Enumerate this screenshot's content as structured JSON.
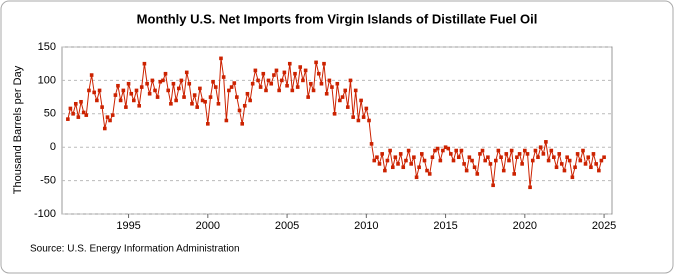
{
  "chart_data": {
    "type": "line",
    "title": "Monthly U.S. Net Imports from Virgin Islands of Distillate Fuel Oil",
    "y_label": "Thousand Barrels per Day",
    "source": "Source: U.S. Energy Information Administration",
    "xlim": [
      1990.8,
      2025.5
    ],
    "xticks": [
      1995,
      2000,
      2005,
      2010,
      2015,
      2020,
      2025
    ],
    "ylim": [
      -100,
      150
    ],
    "yticks": [
      -100,
      -50,
      0,
      50,
      100,
      150
    ],
    "grid": true,
    "x": [
      1991.17,
      1991.33,
      1991.5,
      1991.67,
      1991.83,
      1992.0,
      1992.17,
      1992.33,
      1992.5,
      1992.67,
      1992.83,
      1993.0,
      1993.17,
      1993.33,
      1993.5,
      1993.67,
      1993.83,
      1994.0,
      1994.17,
      1994.33,
      1994.5,
      1994.67,
      1994.83,
      1995.0,
      1995.17,
      1995.33,
      1995.5,
      1995.67,
      1995.83,
      1996.0,
      1996.17,
      1996.33,
      1996.5,
      1996.67,
      1996.83,
      1997.0,
      1997.17,
      1997.33,
      1997.5,
      1997.67,
      1997.83,
      1998.0,
      1998.17,
      1998.33,
      1998.5,
      1998.67,
      1998.83,
      1999.0,
      1999.17,
      1999.33,
      1999.5,
      1999.67,
      1999.83,
      2000.0,
      2000.17,
      2000.33,
      2000.5,
      2000.67,
      2000.83,
      2001.0,
      2001.17,
      2001.33,
      2001.5,
      2001.67,
      2001.83,
      2002.0,
      2002.17,
      2002.33,
      2002.5,
      2002.67,
      2002.83,
      2003.0,
      2003.17,
      2003.33,
      2003.5,
      2003.67,
      2003.83,
      2004.0,
      2004.17,
      2004.33,
      2004.5,
      2004.67,
      2004.83,
      2005.0,
      2005.17,
      2005.33,
      2005.5,
      2005.67,
      2005.83,
      2006.0,
      2006.17,
      2006.33,
      2006.5,
      2006.67,
      2006.83,
      2007.0,
      2007.17,
      2007.33,
      2007.5,
      2007.67,
      2007.83,
      2008.0,
      2008.17,
      2008.33,
      2008.5,
      2008.67,
      2008.83,
      2009.0,
      2009.17,
      2009.33,
      2009.5,
      2009.67,
      2009.83,
      2010.0,
      2010.17,
      2010.33,
      2010.5,
      2010.67,
      2010.83,
      2011.0,
      2011.17,
      2011.33,
      2011.5,
      2011.67,
      2011.83,
      2012.0,
      2012.17,
      2012.33,
      2012.5,
      2012.67,
      2012.83,
      2013.0,
      2013.17,
      2013.33,
      2013.5,
      2013.67,
      2013.83,
      2014.0,
      2014.17,
      2014.33,
      2014.5,
      2014.67,
      2014.83,
      2015.0,
      2015.17,
      2015.33,
      2015.5,
      2015.67,
      2015.83,
      2016.0,
      2016.17,
      2016.33,
      2016.5,
      2016.67,
      2016.83,
      2017.0,
      2017.17,
      2017.33,
      2017.5,
      2017.67,
      2017.83,
      2018.0,
      2018.17,
      2018.33,
      2018.5,
      2018.67,
      2018.83,
      2019.0,
      2019.17,
      2019.33,
      2019.5,
      2019.67,
      2019.83,
      2020.0,
      2020.17,
      2020.33,
      2020.5,
      2020.67,
      2020.83,
      2021.0,
      2021.17,
      2021.33,
      2021.5,
      2021.67,
      2021.83,
      2022.0,
      2022.17,
      2022.33,
      2022.5,
      2022.67,
      2022.83,
      2023.0,
      2023.17,
      2023.33,
      2023.5,
      2023.67,
      2023.83,
      2024.0,
      2024.17,
      2024.33,
      2024.5,
      2024.67,
      2024.83,
      2025.0
    ],
    "series": [
      {
        "color": "#cc2200",
        "values": [
          42,
          58,
          50,
          65,
          45,
          68,
          52,
          48,
          85,
          108,
          82,
          70,
          85,
          60,
          28,
          45,
          40,
          48,
          78,
          92,
          70,
          85,
          60,
          95,
          80,
          70,
          85,
          62,
          90,
          125,
          95,
          80,
          100,
          85,
          75,
          98,
          100,
          110,
          85,
          65,
          95,
          70,
          88,
          100,
          75,
          112,
          95,
          65,
          78,
          60,
          88,
          70,
          68,
          35,
          75,
          98,
          90,
          65,
          133,
          105,
          40,
          85,
          90,
          96,
          75,
          55,
          35,
          62,
          80,
          70,
          95,
          115,
          100,
          90,
          110,
          85,
          100,
          95,
          108,
          115,
          85,
          100,
          112,
          92,
          125,
          85,
          110,
          90,
          120,
          100,
          115,
          75,
          95,
          85,
          127,
          110,
          95,
          125,
          80,
          100,
          90,
          50,
          95,
          70,
          75,
          85,
          60,
          100,
          45,
          85,
          40,
          70,
          45,
          58,
          40,
          5,
          -20,
          -15,
          -25,
          -10,
          -35,
          -20,
          -5,
          -30,
          -15,
          -25,
          -10,
          -30,
          -20,
          -5,
          -25,
          -15,
          -45,
          -30,
          -10,
          -20,
          -35,
          -40,
          -15,
          -5,
          -2,
          -20,
          -5,
          0,
          -2,
          -10,
          -20,
          -5,
          -15,
          -5,
          -25,
          -35,
          -15,
          -20,
          -30,
          -40,
          -10,
          -5,
          -20,
          -15,
          -25,
          -57,
          -20,
          -5,
          -15,
          -35,
          -10,
          -20,
          -5,
          -40,
          -15,
          -10,
          -25,
          -5,
          -10,
          -60,
          -20,
          -5,
          -15,
          0,
          -10,
          8,
          -20,
          -5,
          -15,
          -30,
          -10,
          -25,
          -35,
          -15,
          -20,
          -45,
          -30,
          -10,
          -20,
          -5,
          -25,
          -15,
          -30,
          -10,
          -25,
          -35,
          -20,
          -15
        ]
      }
    ]
  }
}
